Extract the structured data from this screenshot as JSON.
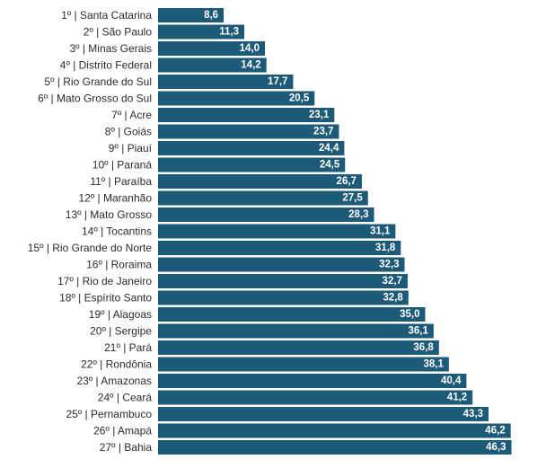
{
  "chart_data": {
    "type": "bar",
    "orientation": "horizontal",
    "title": "",
    "xlabel": "",
    "ylabel": "",
    "xlim": [
      0,
      50
    ],
    "grid": false,
    "legend": "none",
    "bar_color": "#1d5a78",
    "value_color": "#ffffff",
    "categories": [
      "1º | Santa Catarina",
      "2º | São Paulo",
      "3º | Minas Gerais",
      "4º | Distrito Federal",
      "5º | Rio Grande do Sul",
      "6º | Mato Grosso do Sul",
      "7º | Acre",
      "8º | Goiás",
      "9º | Piauí",
      "10º | Paraná",
      "11º | Paraíba",
      "12º | Maranhão",
      "13º | Mato Grosso",
      "14º | Tocantins",
      "15º | Rio Grande do Norte",
      "16º | Roraima",
      "17º | Rio de Janeiro",
      "18º | Espírito Santo",
      "19º | Alagoas",
      "20º | Sergipe",
      "21º | Pará",
      "22º | Rondônia",
      "23º | Amazonas",
      "24º | Ceará",
      "25º | Pernambuco",
      "26º | Amapá",
      "27º | Bahia"
    ],
    "values": [
      8.6,
      11.3,
      14.0,
      14.2,
      17.7,
      20.5,
      23.1,
      23.7,
      24.4,
      24.5,
      26.7,
      27.5,
      28.3,
      31.1,
      31.8,
      32.3,
      32.7,
      32.8,
      35.0,
      36.1,
      36.8,
      38.1,
      40.4,
      41.2,
      43.3,
      46.2,
      46.3
    ],
    "value_labels": [
      "8,6",
      "11,3",
      "14,0",
      "14,2",
      "17,7",
      "20,5",
      "23,1",
      "23,7",
      "24,4",
      "24,5",
      "26,7",
      "27,5",
      "28,3",
      "31,1",
      "31,8",
      "32,3",
      "32,7",
      "32,8",
      "35,0",
      "36,1",
      "36,8",
      "38,1",
      "40,4",
      "41,2",
      "43,3",
      "46,2",
      "46,3"
    ]
  }
}
